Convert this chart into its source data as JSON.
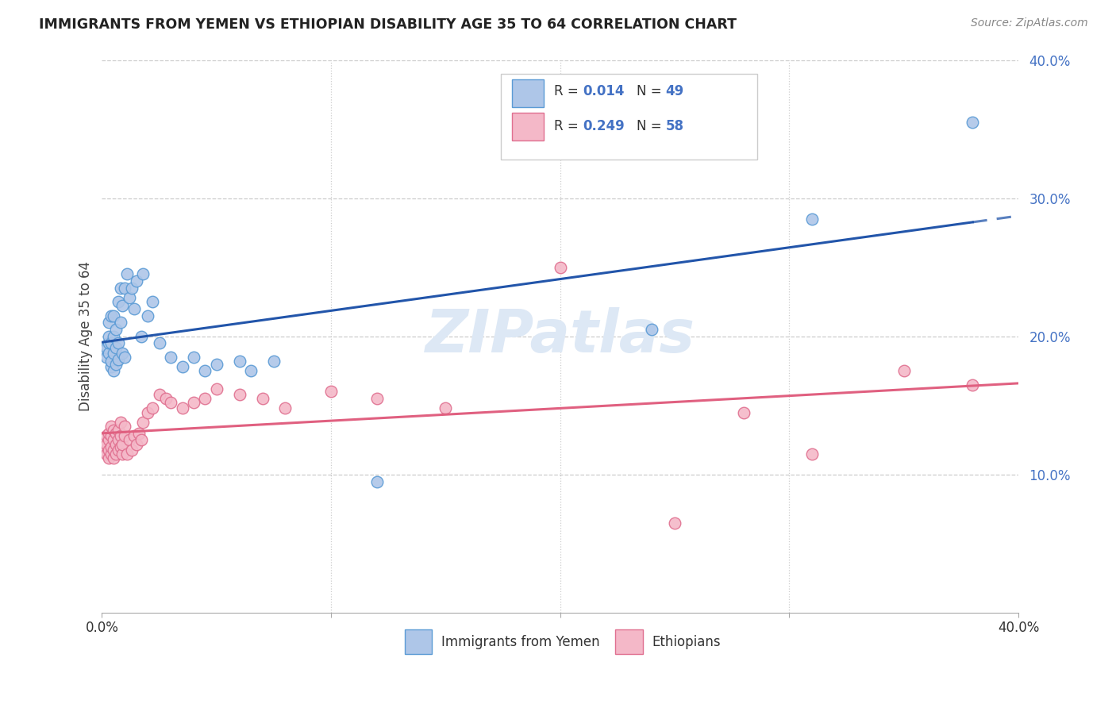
{
  "title": "IMMIGRANTS FROM YEMEN VS ETHIOPIAN DISABILITY AGE 35 TO 64 CORRELATION CHART",
  "source": "Source: ZipAtlas.com",
  "ylabel": "Disability Age 35 to 64",
  "legend_label1": "Immigrants from Yemen",
  "legend_label2": "Ethiopians",
  "color_yemen_fill": "#aec6e8",
  "color_yemen_edge": "#5b9bd5",
  "color_ethiopian_fill": "#f4b8c8",
  "color_ethiopian_edge": "#e07090",
  "color_line_yemen": "#2255aa",
  "color_line_ethiopian": "#e06080",
  "xmin": 0.0,
  "xmax": 0.4,
  "ymin": 0.0,
  "ymax": 0.4,
  "yticks": [
    0.1,
    0.2,
    0.3,
    0.4
  ],
  "ytick_labels": [
    "10.0%",
    "20.0%",
    "30.0%",
    "40.0%"
  ],
  "yemen_x": [
    0.001,
    0.002,
    0.002,
    0.003,
    0.003,
    0.003,
    0.003,
    0.004,
    0.004,
    0.004,
    0.004,
    0.005,
    0.005,
    0.005,
    0.005,
    0.006,
    0.006,
    0.006,
    0.007,
    0.007,
    0.007,
    0.008,
    0.008,
    0.009,
    0.009,
    0.01,
    0.01,
    0.011,
    0.012,
    0.013,
    0.014,
    0.015,
    0.017,
    0.018,
    0.02,
    0.022,
    0.025,
    0.03,
    0.035,
    0.04,
    0.045,
    0.05,
    0.06,
    0.065,
    0.075,
    0.12,
    0.24,
    0.31,
    0.38
  ],
  "yemen_y": [
    0.19,
    0.185,
    0.192,
    0.188,
    0.195,
    0.2,
    0.21,
    0.178,
    0.182,
    0.195,
    0.215,
    0.175,
    0.188,
    0.2,
    0.215,
    0.18,
    0.192,
    0.205,
    0.183,
    0.195,
    0.225,
    0.21,
    0.235,
    0.188,
    0.222,
    0.185,
    0.235,
    0.245,
    0.228,
    0.235,
    0.22,
    0.24,
    0.2,
    0.245,
    0.215,
    0.225,
    0.195,
    0.185,
    0.178,
    0.185,
    0.175,
    0.18,
    0.182,
    0.175,
    0.182,
    0.095,
    0.205,
    0.285,
    0.355
  ],
  "ethiopian_x": [
    0.001,
    0.002,
    0.002,
    0.002,
    0.003,
    0.003,
    0.003,
    0.003,
    0.004,
    0.004,
    0.004,
    0.004,
    0.005,
    0.005,
    0.005,
    0.005,
    0.006,
    0.006,
    0.006,
    0.007,
    0.007,
    0.007,
    0.008,
    0.008,
    0.008,
    0.009,
    0.009,
    0.01,
    0.01,
    0.011,
    0.012,
    0.013,
    0.014,
    0.015,
    0.016,
    0.017,
    0.018,
    0.02,
    0.022,
    0.025,
    0.028,
    0.03,
    0.035,
    0.04,
    0.045,
    0.05,
    0.06,
    0.07,
    0.08,
    0.1,
    0.12,
    0.15,
    0.2,
    0.25,
    0.28,
    0.31,
    0.35,
    0.38
  ],
  "ethiopian_y": [
    0.118,
    0.122,
    0.128,
    0.115,
    0.112,
    0.118,
    0.125,
    0.13,
    0.115,
    0.12,
    0.128,
    0.135,
    0.112,
    0.118,
    0.125,
    0.132,
    0.115,
    0.122,
    0.13,
    0.118,
    0.125,
    0.132,
    0.12,
    0.128,
    0.138,
    0.115,
    0.122,
    0.128,
    0.135,
    0.115,
    0.125,
    0.118,
    0.128,
    0.122,
    0.13,
    0.125,
    0.138,
    0.145,
    0.148,
    0.158,
    0.155,
    0.152,
    0.148,
    0.152,
    0.155,
    0.162,
    0.158,
    0.155,
    0.148,
    0.16,
    0.155,
    0.148,
    0.25,
    0.065,
    0.145,
    0.115,
    0.175,
    0.165
  ]
}
